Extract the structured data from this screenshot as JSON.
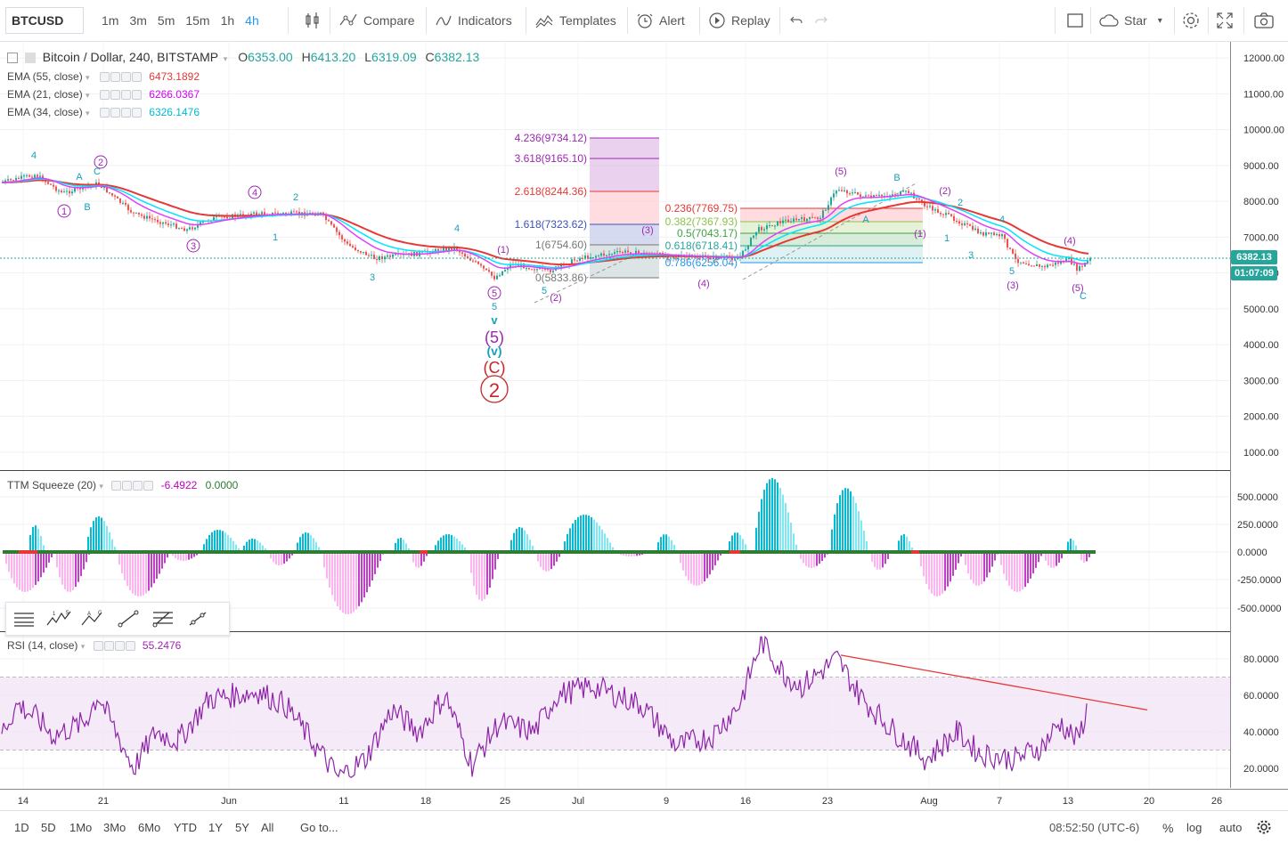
{
  "toolbar": {
    "symbol": "BTCUSD",
    "intervals": [
      "1m",
      "3m",
      "5m",
      "15m",
      "1h",
      "4h"
    ],
    "active_interval": "4h",
    "compare_label": "Compare",
    "indicators_label": "Indicators",
    "templates_label": "Templates",
    "alert_label": "Alert",
    "replay_label": "Replay",
    "star_label": "Star",
    "icons": [
      "candles-icon",
      "compare-icon",
      "indicators-icon",
      "templates-icon",
      "alert-icon",
      "replay-icon",
      "undo-icon",
      "redo-icon",
      "square-icon",
      "cloud-icon",
      "settings-icon",
      "fullscreen-icon",
      "camera-icon"
    ]
  },
  "main_legend": {
    "title": "Bitcoin / Dollar, 240, BITSTAMP",
    "o_label": "O",
    "o_value": "6353.00",
    "h_label": "H",
    "h_value": "6413.20",
    "l_label": "L",
    "l_value": "6319.09",
    "c_label": "C",
    "c_value": "6382.13",
    "studies": [
      {
        "name": "EMA (55, close)",
        "value": "6473.1892",
        "color": "#e53935"
      },
      {
        "name": "EMA (21, close)",
        "value": "6266.0367",
        "color": "#e040fb"
      },
      {
        "name": "EMA (34, close)",
        "value": "6326.1476",
        "color": "#00bcd4"
      }
    ]
  },
  "price_axis": {
    "ticks": [
      "12000.00",
      "11000.00",
      "10000.00",
      "9000.00",
      "8000.00",
      "7000.00",
      "6000.00",
      "5000.00",
      "4000.00",
      "3000.00",
      "2000.00",
      "1000.00"
    ],
    "last_price": "6382.13",
    "countdown": "01:07:09"
  },
  "squeeze": {
    "name": "TTM Squeeze (20)",
    "value1": "-6.4922",
    "value2": "0.0000",
    "ticks": [
      "500.0000",
      "250.0000",
      "0.0000",
      "-250.0000",
      "-500.0000"
    ]
  },
  "rsi": {
    "name": "RSI (14, close)",
    "value": "55.2476",
    "ticks": [
      "80.0000",
      "60.0000",
      "40.0000",
      "20.0000"
    ]
  },
  "time_axis": {
    "labels": [
      "14",
      "21",
      "Jun",
      "11",
      "18",
      "25",
      "Jul",
      "9",
      "16",
      "23",
      "Aug",
      "7",
      "13",
      "20",
      "26"
    ]
  },
  "fib_left": [
    "4.236(9734.12)",
    "3.618(9165.10)",
    "2.618(8244.36)",
    "1.618(7323.62)",
    "1(6754.60)",
    "0(5833.86)"
  ],
  "fib_right": [
    "0.236(7769.75)",
    "0.382(7367.93)",
    "0.5(7043.17)",
    "0.618(6718.41)",
    "0.786(6256.04)"
  ],
  "wave_labels": {
    "circled": [
      "1",
      "2",
      "3",
      "4",
      "5"
    ],
    "digits": [
      "4",
      "1",
      "2",
      "3",
      "4",
      "5"
    ],
    "abc": [
      "A",
      "B",
      "C"
    ],
    "paren": [
      "(1)",
      "(2)",
      "(3)",
      "(4)",
      "(5)"
    ],
    "big": [
      "v",
      "(5)",
      "(v)",
      "(C)",
      "2"
    ]
  },
  "bottombar": {
    "ranges": [
      "1D",
      "5D",
      "1Mo",
      "3Mo",
      "6Mo",
      "YTD",
      "1Y",
      "5Y",
      "All"
    ],
    "goto_label": "Go to...",
    "clock": "08:52:50 (UTC-6)",
    "percent_label": "%",
    "log_label": "log",
    "auto_label": "auto"
  }
}
